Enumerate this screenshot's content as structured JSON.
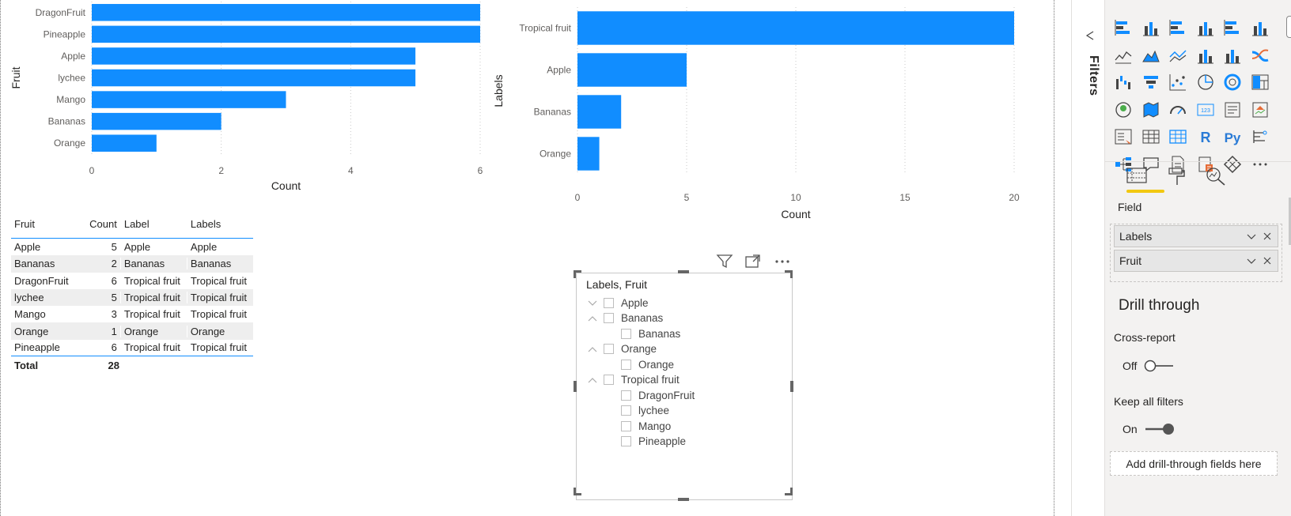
{
  "colors": {
    "accent": "#118dff",
    "bar": "#118dff",
    "drill_underline": "#f2c811"
  },
  "chart1": {
    "type": "bar",
    "ylabel": "Fruit",
    "xlabel": "Count",
    "categories": [
      "DragonFruit",
      "Pineapple",
      "Apple",
      "lychee",
      "Mango",
      "Bananas",
      "Orange"
    ],
    "values": [
      6,
      6,
      5,
      5,
      3,
      2,
      1
    ],
    "xticks": [
      "0",
      "2",
      "4",
      "6"
    ],
    "xlim": [
      0,
      6
    ]
  },
  "chart2": {
    "type": "bar",
    "ylabel": "Labels",
    "xlabel": "Count",
    "categories": [
      "Tropical fruit",
      "Apple",
      "Bananas",
      "Orange"
    ],
    "values": [
      20,
      5,
      2,
      1
    ],
    "xticks": [
      "0",
      "5",
      "10",
      "15",
      "20"
    ],
    "xlim": [
      0,
      20
    ]
  },
  "chart_data": [
    {
      "type": "bar",
      "categories": [
        "DragonFruit",
        "Pineapple",
        "Apple",
        "lychee",
        "Mango",
        "Bananas",
        "Orange"
      ],
      "values": [
        6,
        6,
        5,
        5,
        3,
        2,
        1
      ],
      "xlabel": "Count",
      "ylabel": "Fruit",
      "xlim": [
        0,
        6
      ]
    },
    {
      "type": "bar",
      "categories": [
        "Tropical fruit",
        "Apple",
        "Bananas",
        "Orange"
      ],
      "values": [
        20,
        5,
        2,
        1
      ],
      "xlabel": "Count",
      "ylabel": "Labels",
      "xlim": [
        0,
        20
      ]
    }
  ],
  "table": {
    "headers": [
      "Fruit",
      "Count",
      "Label",
      "Labels"
    ],
    "rows": [
      [
        "Apple",
        "5",
        "Apple",
        "Apple"
      ],
      [
        "Bananas",
        "2",
        "Bananas",
        "Bananas"
      ],
      [
        "DragonFruit",
        "6",
        "Tropical fruit",
        "Tropical fruit"
      ],
      [
        "lychee",
        "5",
        "Tropical fruit",
        "Tropical fruit"
      ],
      [
        "Mango",
        "3",
        "Tropical fruit",
        "Tropical fruit"
      ],
      [
        "Orange",
        "1",
        "Orange",
        "Orange"
      ],
      [
        "Pineapple",
        "6",
        "Tropical fruit",
        "Tropical fruit"
      ]
    ],
    "total_label": "Total",
    "total_value": "28"
  },
  "slicer": {
    "title": "Labels, Fruit",
    "groups": [
      {
        "label": "Apple",
        "expanded": false,
        "children": []
      },
      {
        "label": "Bananas",
        "expanded": true,
        "children": [
          "Bananas"
        ]
      },
      {
        "label": "Orange",
        "expanded": true,
        "children": [
          "Orange"
        ]
      },
      {
        "label": "Tropical fruit",
        "expanded": true,
        "children": [
          "DragonFruit",
          "lychee",
          "Mango",
          "Pineapple"
        ]
      }
    ],
    "header_icons": [
      "filter-icon",
      "focus-mode-icon",
      "more-options-icon"
    ]
  },
  "filters_strip": {
    "label": "Filters"
  },
  "pane": {
    "field_label": "Field",
    "fields": [
      "Labels",
      "Fruit"
    ],
    "drill_title": "Drill through",
    "cross_report_label": "Cross-report",
    "cross_report_state": "Off",
    "keep_filters_label": "Keep all filters",
    "keep_filters_state": "On",
    "add_drill_label": "Add drill-through fields here",
    "more_label": "···"
  }
}
